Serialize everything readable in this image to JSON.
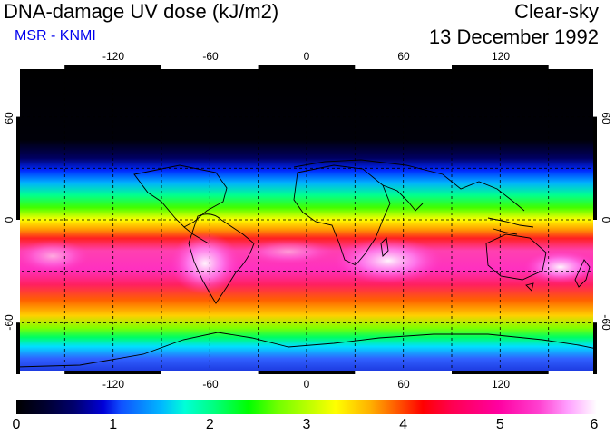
{
  "header": {
    "title": "DNA-damage UV dose (kJ/m2)",
    "subtitle": "MSR - KNMI",
    "condition": "Clear-sky",
    "date": "13 December 1992"
  },
  "map": {
    "longitude_ticks": [
      "-120",
      "-60",
      "0",
      "60",
      "120"
    ],
    "latitude_ticks": [
      "60",
      "0",
      "-60"
    ]
  },
  "colorbar": {
    "ticks": [
      "0",
      "1",
      "2",
      "3",
      "4",
      "5",
      "6"
    ],
    "min": 0,
    "max": 6
  },
  "colors": {
    "subtitle": "#0000ee",
    "graticule": "#000000"
  }
}
